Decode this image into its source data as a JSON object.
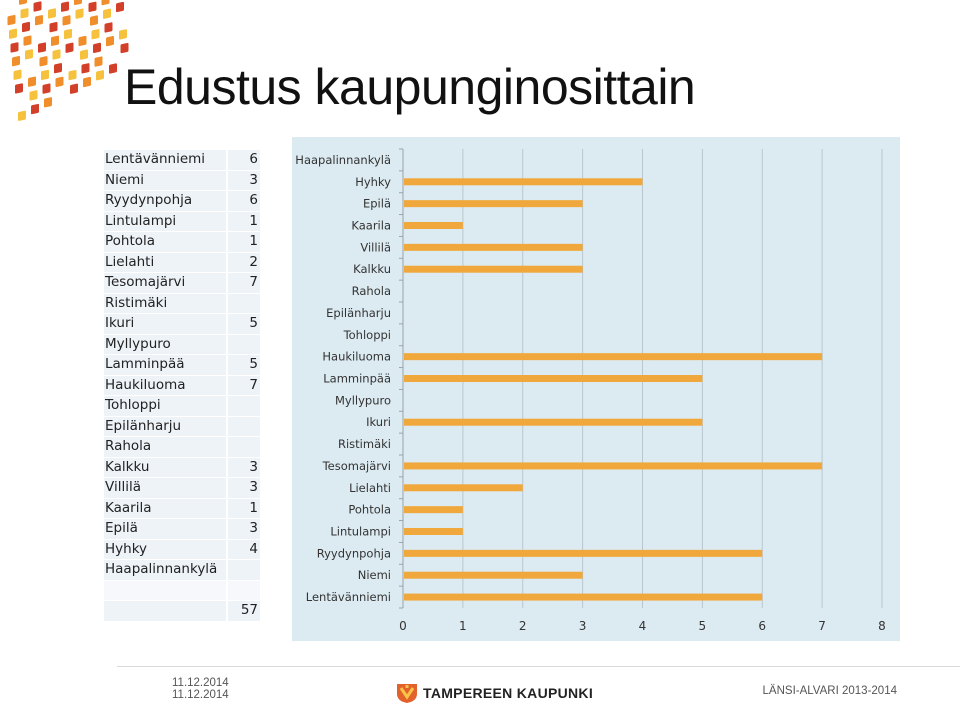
{
  "title": "Edustus kaupunginosittain",
  "table": {
    "rows": [
      {
        "name": "Lentävänniemi",
        "value": "6"
      },
      {
        "name": "Niemi",
        "value": "3"
      },
      {
        "name": "Ryydynpohja",
        "value": "6"
      },
      {
        "name": "Lintulampi",
        "value": "1"
      },
      {
        "name": "Pohtola",
        "value": "1"
      },
      {
        "name": "Lielahti",
        "value": "2"
      },
      {
        "name": "Tesomajärvi",
        "value": "7"
      },
      {
        "name": "Ristimäki",
        "value": ""
      },
      {
        "name": "Ikuri",
        "value": "5"
      },
      {
        "name": "Myllypuro",
        "value": ""
      },
      {
        "name": "Lamminpää",
        "value": "5"
      },
      {
        "name": "Haukiluoma",
        "value": "7"
      },
      {
        "name": "Tohloppi",
        "value": ""
      },
      {
        "name": "Epilänharju",
        "value": ""
      },
      {
        "name": "Rahola",
        "value": ""
      },
      {
        "name": "Kalkku",
        "value": "3"
      },
      {
        "name": "Villilä",
        "value": "3"
      },
      {
        "name": "Kaarila",
        "value": "1"
      },
      {
        "name": "Epilä",
        "value": "3"
      },
      {
        "name": "Hyhky",
        "value": "4"
      },
      {
        "name": "Haapalinnankylä",
        "value": ""
      }
    ],
    "total": "57"
  },
  "chart_data": {
    "type": "bar",
    "orientation": "horizontal",
    "categories": [
      "Haapalinnankylä",
      "Hyhky",
      "Epilä",
      "Kaarila",
      "Villilä",
      "Kalkku",
      "Rahola",
      "Epilänharju",
      "Tohloppi",
      "Haukiluoma",
      "Lamminpää",
      "Myllypuro",
      "Ikuri",
      "Ristimäki",
      "Tesomajärvi",
      "Lielahti",
      "Pohtola",
      "Lintulampi",
      "Ryydynpohja",
      "Niemi",
      "Lentävänniemi"
    ],
    "values": [
      0,
      4,
      3,
      1,
      3,
      3,
      0,
      0,
      0,
      7,
      5,
      0,
      5,
      0,
      7,
      2,
      1,
      1,
      6,
      3,
      6
    ],
    "xlim": [
      0,
      8
    ],
    "xticks": [
      "0",
      "1",
      "2",
      "3",
      "4",
      "5",
      "6",
      "7",
      "8"
    ],
    "grid": true,
    "bar_color": "#f0a83c",
    "background": "#dcebf2"
  },
  "footer": {
    "date1": "11.12.2014",
    "date2": "11.12.2014",
    "city": "TAMPEREEN KAUPUNKI",
    "right_text": "LÄNSI-ALVARI 2013-2014"
  },
  "colors": {
    "logo_red": "#d2402a",
    "logo_orange": "#ef8e2b",
    "logo_yellow": "#f6c23e"
  }
}
